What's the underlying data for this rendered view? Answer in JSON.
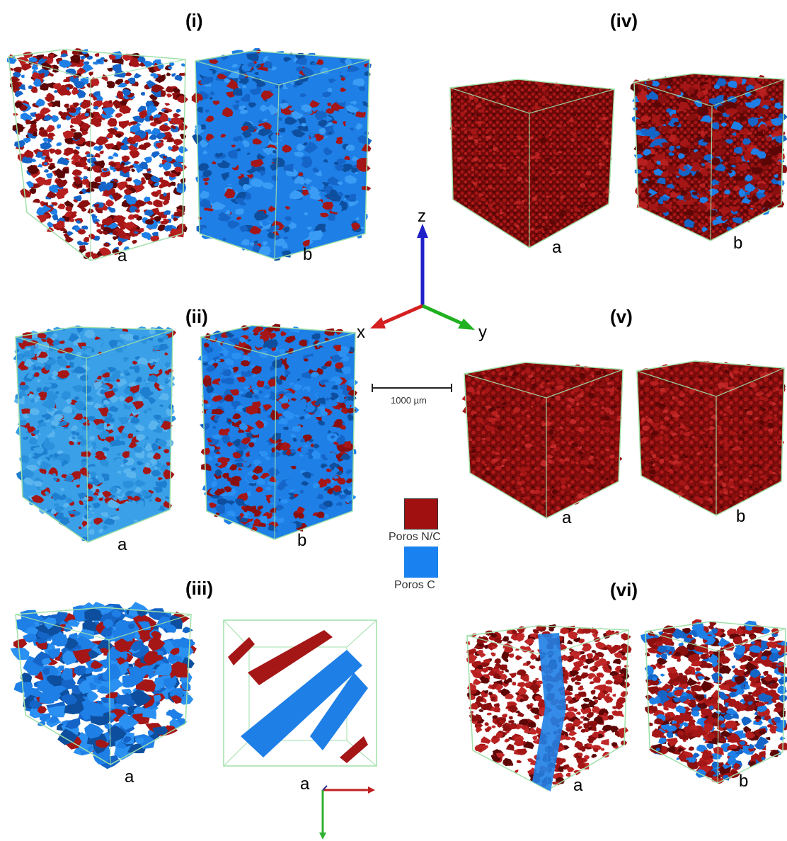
{
  "sections": {
    "i": "(i)",
    "ii": "(ii)",
    "iii": "(iii)",
    "iv": "(iv)",
    "v": "(v)",
    "vi": "(vi)"
  },
  "sublabels": {
    "a": "a",
    "b": "b"
  },
  "axes": {
    "z": "z",
    "x": "x",
    "y": "y"
  },
  "scale_bar": {
    "label": "1000 µm"
  },
  "legend": {
    "non_connected": {
      "label": "Poros N/C",
      "color": "#a01010"
    },
    "connected": {
      "label": "Poros C",
      "color": "#1a82f0"
    }
  },
  "colors": {
    "red_pore": "#9c1212",
    "red_pore_dark": "#5a0707",
    "blue_pore": "#1e7fe6",
    "blue_pore_dark": "#0d4f9e",
    "light_blue_pore": "#3aa0e8",
    "frame": "#9fe0a8",
    "axis_x": "#d42020",
    "axis_y": "#20b020",
    "axis_z": "#2020c8"
  }
}
